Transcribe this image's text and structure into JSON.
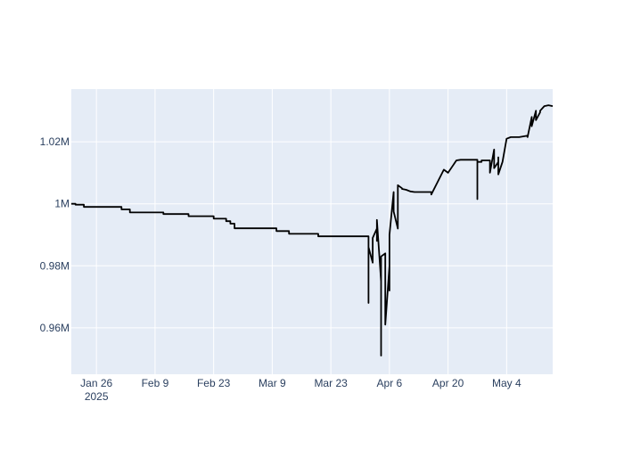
{
  "chart_data": {
    "type": "line",
    "title": "",
    "xlabel": "",
    "ylabel": "",
    "x_ticks": [
      {
        "date": "2025-01-26",
        "label": "Jan 26",
        "sublabel": "2025"
      },
      {
        "date": "2025-02-09",
        "label": "Feb 9"
      },
      {
        "date": "2025-02-23",
        "label": "Feb 23"
      },
      {
        "date": "2025-03-09",
        "label": "Mar 9"
      },
      {
        "date": "2025-03-23",
        "label": "Mar 23"
      },
      {
        "date": "2025-04-06",
        "label": "Apr 6"
      },
      {
        "date": "2025-04-20",
        "label": "Apr 20"
      },
      {
        "date": "2025-05-04",
        "label": "May 4"
      }
    ],
    "y_ticks": [
      {
        "value": 960000,
        "label": "0.96M"
      },
      {
        "value": 980000,
        "label": "0.98M"
      },
      {
        "value": 1000000,
        "label": "1M"
      },
      {
        "value": 1020000,
        "label": "1.02M"
      }
    ],
    "xlim": [
      "2025-01-20",
      "2025-05-15"
    ],
    "ylim": [
      945000,
      1037000
    ],
    "grid": true,
    "colors": {
      "background": "#E5ECF6",
      "grid": "#ffffff",
      "line": "#000000",
      "text": "#2a3f5f"
    },
    "series": [
      {
        "x": [
          "2025-01-20",
          "2025-01-21",
          "2025-01-21",
          "2025-01-23",
          "2025-01-23",
          "2025-02-01",
          "2025-02-01",
          "2025-02-03",
          "2025-02-03",
          "2025-02-11",
          "2025-02-11",
          "2025-02-17",
          "2025-02-17",
          "2025-02-23",
          "2025-02-23",
          "2025-02-26",
          "2025-02-26",
          "2025-02-27",
          "2025-02-27",
          "2025-02-28",
          "2025-02-28",
          "2025-03-02",
          "2025-03-02",
          "2025-03-10",
          "2025-03-10",
          "2025-03-13",
          "2025-03-13",
          "2025-03-19",
          "2025-03-19",
          "2025-03-20",
          "2025-03-20",
          "2025-03-31",
          "2025-03-31",
          "2025-04-01",
          "2025-04-01",
          "2025-04-01",
          "2025-04-01",
          "2025-04-02",
          "2025-04-02",
          "2025-04-03",
          "2025-04-03",
          "2025-04-03",
          "2025-04-04",
          "2025-04-04",
          "2025-04-04",
          "2025-04-05",
          "2025-04-05",
          "2025-04-06",
          "2025-04-06",
          "2025-04-06",
          "2025-04-07",
          "2025-04-07",
          "2025-04-07",
          "2025-04-08",
          "2025-04-08",
          "2025-04-09",
          "2025-04-09",
          "2025-04-09",
          "2025-04-10",
          "2025-04-10",
          "2025-04-11",
          "2025-04-11",
          "2025-04-12",
          "2025-04-14",
          "2025-04-16",
          "2025-04-16",
          "2025-04-19",
          "2025-04-19",
          "2025-04-20",
          "2025-04-20",
          "2025-04-22",
          "2025-04-22",
          "2025-04-23",
          "2025-04-23",
          "2025-04-27",
          "2025-04-27",
          "2025-04-27",
          "2025-04-27",
          "2025-04-28",
          "2025-04-28",
          "2025-04-30",
          "2025-04-30",
          "2025-05-01",
          "2025-05-01",
          "2025-05-01",
          "2025-05-01",
          "2025-05-02",
          "2025-05-02",
          "2025-05-02",
          "2025-05-02",
          "2025-05-03",
          "2025-05-03",
          "2025-05-04",
          "2025-05-04",
          "2025-05-05",
          "2025-05-07",
          "2025-05-09",
          "2025-05-09",
          "2025-05-10",
          "2025-05-10",
          "2025-05-11",
          "2025-05-11",
          "2025-05-12",
          "2025-05-12",
          "2025-05-13",
          "2025-05-14",
          "2025-05-15"
        ],
        "y": [
          1000000,
          1000000,
          999700,
          999700,
          999000,
          999000,
          998200,
          998200,
          997200,
          997200,
          996700,
          996700,
          996000,
          996000,
          995200,
          995200,
          994400,
          994400,
          993600,
          993600,
          992100,
          992100,
          992100,
          992100,
          991200,
          991200,
          990300,
          990300,
          990300,
          990300,
          989500,
          989500,
          989500,
          989500,
          968000,
          989500,
          986000,
          981000,
          989000,
          992000,
          988000,
          994800,
          975000,
          951000,
          983000,
          984000,
          961000,
          980000,
          972000,
          990000,
          1003800,
          1003800,
          997500,
          992000,
          1006000,
          1005000,
          1004800,
          1004800,
          1004500,
          1004500,
          1004000,
          1004000,
          1003800,
          1003800,
          1003800,
          1003000,
          1011000,
          1011000,
          1010000,
          1010000,
          1014000,
          1014000,
          1014200,
          1014200,
          1014200,
          1001500,
          1014000,
          1013500,
          1013500,
          1014000,
          1014000,
          1010000,
          1017500,
          1017500,
          1017500,
          1011500,
          1013500,
          1010500,
          1015000,
          1009500,
          1013500,
          1013500,
          1021000,
          1021000,
          1021500,
          1021500,
          1022000,
          1021500,
          1028000,
          1025000,
          1030000,
          1027000,
          1029500,
          1030000,
          1031500,
          1031800,
          1031500
        ]
      }
    ]
  }
}
